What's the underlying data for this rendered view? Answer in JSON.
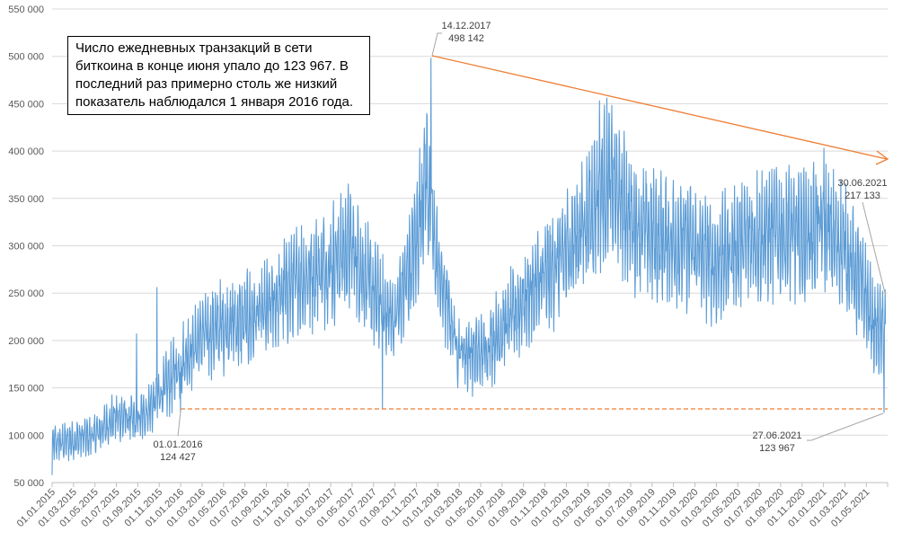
{
  "chart_data": {
    "type": "line",
    "title": "",
    "xlabel": "",
    "ylabel": "",
    "ylim": [
      50000,
      550000
    ],
    "grid": true,
    "legend": "none",
    "y_ticks": [
      "50 000",
      "100 000",
      "150 000",
      "200 000",
      "250 000",
      "300 000",
      "350 000",
      "400 000",
      "450 000",
      "500 000",
      "550 000"
    ],
    "y_tick_values": [
      50000,
      100000,
      150000,
      200000,
      250000,
      300000,
      350000,
      400000,
      450000,
      500000,
      550000
    ],
    "x_ticks": [
      "01.01.2015",
      "01.03.2015",
      "01.05.2015",
      "01.07.2015",
      "01.09.2015",
      "01.11.2015",
      "01.01.2016",
      "01.03.2016",
      "01.05.2016",
      "01.07.2016",
      "01.09.2016",
      "01.11.2016",
      "01.01.2017",
      "01.03.2017",
      "01.05.2017",
      "01.07.2017",
      "01.09.2017",
      "01.11.2017",
      "01.01.2018",
      "01.03.2018",
      "01.05.2018",
      "01.07.2018",
      "01.09.2018",
      "01.11.2018",
      "01.01.2019",
      "01.03.2019",
      "01.05.2019",
      "01.07.2019",
      "01.09.2019",
      "01.11.2019",
      "01.01.2020",
      "01.03.2020",
      "01.05.2020",
      "01.07.2020",
      "01.09.2020",
      "01.11.2020",
      "01.01.2021",
      "01.03.2021",
      "01.05.2021"
    ],
    "series": [
      {
        "name": "Daily bitcoin transactions",
        "color": "#5b9bd5",
        "approx_monthly_level": {
          "x": [
            "2015-01",
            "2015-03",
            "2015-05",
            "2015-07",
            "2015-09",
            "2015-11",
            "2016-01",
            "2016-03",
            "2016-05",
            "2016-07",
            "2016-09",
            "2016-11",
            "2017-01",
            "2017-03",
            "2017-05",
            "2017-07",
            "2017-09",
            "2017-11",
            "2017-12",
            "2018-01",
            "2018-03",
            "2018-05",
            "2018-07",
            "2018-09",
            "2018-11",
            "2019-01",
            "2019-03",
            "2019-05",
            "2019-07",
            "2019-09",
            "2019-11",
            "2020-01",
            "2020-03",
            "2020-05",
            "2020-07",
            "2020-09",
            "2020-11",
            "2021-01",
            "2021-03",
            "2021-05",
            "2021-06"
          ],
          "values": [
            90000,
            95000,
            100000,
            120000,
            115000,
            140000,
            175000,
            205000,
            215000,
            220000,
            230000,
            255000,
            270000,
            280000,
            300000,
            250000,
            220000,
            300000,
            380000,
            280000,
            190000,
            185000,
            210000,
            240000,
            265000,
            290000,
            330000,
            370000,
            330000,
            310000,
            305000,
            300000,
            280000,
            300000,
            310000,
            315000,
            310000,
            320000,
            300000,
            250000,
            210000
          ]
        }
      }
    ],
    "annotations": [
      {
        "date": "14.12.2017",
        "value": "498 142",
        "note": "peak"
      },
      {
        "date": "01.01.2016",
        "value": "124 427",
        "note": "previous low"
      },
      {
        "date": "30.06.2021",
        "value": "217 133",
        "note": "last value"
      },
      {
        "date": "27.06.2021",
        "value": "123 967",
        "note": "recent low"
      }
    ],
    "reference_lines": [
      {
        "type": "horizontal-dashed",
        "value": 124427,
        "color": "#ed7d31",
        "from": "01.01.2016"
      },
      {
        "type": "trend-arrow",
        "from": {
          "date": "14.12.2017",
          "value": 498142
        },
        "to": {
          "date": "30.06.2021",
          "value": 390000
        },
        "color": "#ed7d31"
      }
    ]
  },
  "note_box": {
    "text": "Число ежедневных транзакций в сети биткоина в конце июня упало до 123 967. В последний раз примерно столь же низкий показатель наблюдался 1 января 2016 года."
  },
  "labels": {
    "peak_date": "14.12.2017",
    "peak_value": "498 142",
    "low2016_date": "01.01.2016",
    "low2016_value": "124 427",
    "last_date": "30.06.2021",
    "last_value": "217 133",
    "low2021_date": "27.06.2021",
    "low2021_value": "123 967"
  },
  "colors": {
    "series": "#5b9bd5",
    "accent": "#ed7d31",
    "grid": "#d9d9d9",
    "axis_text": "#595959"
  }
}
